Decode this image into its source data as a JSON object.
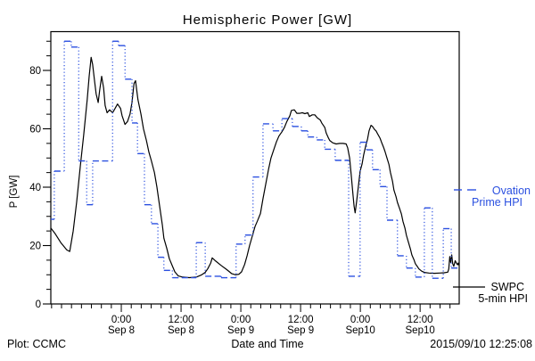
{
  "page": {
    "background": "#ffffff"
  },
  "header": {
    "title": "Hemispheric Power [GW]"
  },
  "footer": {
    "plot_credit": "Plot: CCMC",
    "axis_title": "Date and Time",
    "timestamp": "2015/09/10 12:25:08"
  },
  "legend": {
    "ovation": {
      "line1": "Ovation",
      "line2": "Prime HPI",
      "color": "#2b50e0"
    },
    "swpc": {
      "line1": "SWPC",
      "line2": "5-min HPI",
      "color": "#000000"
    }
  },
  "chart_data": {
    "type": "line",
    "title": "Hemispheric Power [GW]",
    "xlabel": "Date and Time",
    "ylabel": "P [GW]",
    "ylim": [
      0,
      93
    ],
    "xlim_hours": [
      0,
      82
    ],
    "grid": false,
    "legend_position": "right-outside",
    "y_major_ticks": [
      0,
      20,
      40,
      60,
      80
    ],
    "y_minor_step": 5,
    "y_minor_max": 90,
    "x_minor_step_hours": 2,
    "x_major_ticks": [
      {
        "t": 14.15,
        "line1": "0:00",
        "line2": "Sep 8"
      },
      {
        "t": 26.15,
        "line1": "12:00",
        "line2": "Sep 8"
      },
      {
        "t": 38.15,
        "line1": "0:00",
        "line2": "Sep 9"
      },
      {
        "t": 50.15,
        "line1": "12:00",
        "line2": "Sep 9"
      },
      {
        "t": 62.15,
        "line1": "0:00",
        "line2": "Sep10"
      },
      {
        "t": 74.15,
        "line1": "12:00",
        "line2": "Sep10"
      }
    ],
    "series": [
      {
        "name": "SWPC 5-min HPI",
        "style": "solid-polyline",
        "color": "#000000",
        "points": [
          [
            0,
            26
          ],
          [
            0.9,
            24
          ],
          [
            2,
            21
          ],
          [
            3.2,
            18.5
          ],
          [
            3.8,
            18
          ],
          [
            4.5,
            25
          ],
          [
            5.2,
            35
          ],
          [
            5.9,
            47
          ],
          [
            6.6,
            58
          ],
          [
            7.3,
            70
          ],
          [
            7.7,
            78
          ],
          [
            8.1,
            84.5
          ],
          [
            8.4,
            82
          ],
          [
            8.8,
            76
          ],
          [
            9.1,
            72
          ],
          [
            9.5,
            69
          ],
          [
            9.8,
            73
          ],
          [
            10.2,
            78
          ],
          [
            10.6,
            74
          ],
          [
            10.9,
            68
          ],
          [
            11.3,
            65.5
          ],
          [
            11.8,
            66.5
          ],
          [
            12.4,
            65.5
          ],
          [
            12.9,
            67
          ],
          [
            13.4,
            68.5
          ],
          [
            14,
            67
          ],
          [
            14.3,
            64.5
          ],
          [
            14.9,
            61.5
          ],
          [
            15.4,
            62.5
          ],
          [
            15.9,
            65
          ],
          [
            16.3,
            69
          ],
          [
            16.7,
            75.5
          ],
          [
            17,
            76.5
          ],
          [
            17.5,
            70
          ],
          [
            18.1,
            65
          ],
          [
            18.6,
            60
          ],
          [
            19.2,
            56
          ],
          [
            19.7,
            52
          ],
          [
            20.2,
            49
          ],
          [
            20.8,
            45
          ],
          [
            21.3,
            40
          ],
          [
            21.8,
            34
          ],
          [
            22.4,
            27
          ],
          [
            22.7,
            22.5
          ],
          [
            23.3,
            19
          ],
          [
            23.8,
            15.5
          ],
          [
            24.4,
            13
          ],
          [
            24.9,
            11
          ],
          [
            25.6,
            9.6
          ],
          [
            26.5,
            9.2
          ],
          [
            27.8,
            9
          ],
          [
            29.2,
            9.2
          ],
          [
            30.3,
            10
          ],
          [
            31,
            10.8
          ],
          [
            31.5,
            12
          ],
          [
            32.1,
            14
          ],
          [
            32.4,
            15.8
          ],
          [
            33.1,
            14.7
          ],
          [
            34.2,
            13.2
          ],
          [
            35.3,
            11.8
          ],
          [
            36.3,
            10.4
          ],
          [
            37.1,
            10
          ],
          [
            37.8,
            10.2
          ],
          [
            38.3,
            11
          ],
          [
            38.9,
            13.5
          ],
          [
            39.4,
            16.5
          ],
          [
            39.9,
            20
          ],
          [
            40.5,
            23.5
          ],
          [
            41,
            26.5
          ],
          [
            41.5,
            28.5
          ],
          [
            42.1,
            31
          ],
          [
            42.6,
            36
          ],
          [
            43.2,
            41.5
          ],
          [
            43.7,
            46
          ],
          [
            44.2,
            50
          ],
          [
            44.8,
            53
          ],
          [
            45.3,
            55.5
          ],
          [
            45.8,
            57.5
          ],
          [
            46.4,
            59
          ],
          [
            46.9,
            60.5
          ],
          [
            47.4,
            62.5
          ],
          [
            48,
            64.5
          ],
          [
            48.3,
            66.3
          ],
          [
            48.9,
            66.5
          ],
          [
            49.4,
            65.3
          ],
          [
            50,
            65.3
          ],
          [
            50.5,
            65.5
          ],
          [
            51,
            65.2
          ],
          [
            51.6,
            65.5
          ],
          [
            51.9,
            64.2
          ],
          [
            52.5,
            64.8
          ],
          [
            53,
            64.8
          ],
          [
            53.5,
            63.8
          ],
          [
            54.1,
            63
          ],
          [
            54.4,
            62
          ],
          [
            55,
            60.5
          ],
          [
            55.3,
            58.5
          ],
          [
            55.7,
            57
          ],
          [
            56,
            56
          ],
          [
            56.6,
            55.2
          ],
          [
            57.3,
            54.8
          ],
          [
            58,
            55
          ],
          [
            58.7,
            55
          ],
          [
            59.3,
            54.8
          ],
          [
            59.6,
            53.5
          ],
          [
            60,
            50
          ],
          [
            60.3,
            44.5
          ],
          [
            60.7,
            37
          ],
          [
            60.9,
            33.5
          ],
          [
            61.1,
            31.2
          ],
          [
            61.4,
            35
          ],
          [
            61.8,
            41
          ],
          [
            62.1,
            45.5
          ],
          [
            62.5,
            48
          ],
          [
            62.8,
            51
          ],
          [
            63.2,
            54
          ],
          [
            63.6,
            56.5
          ],
          [
            63.9,
            59.3
          ],
          [
            64.3,
            61.2
          ],
          [
            64.6,
            60.8
          ],
          [
            65,
            59.8
          ],
          [
            65.3,
            59.3
          ],
          [
            65.7,
            58
          ],
          [
            66.1,
            56.8
          ],
          [
            66.4,
            55.4
          ],
          [
            66.8,
            53.7
          ],
          [
            67.1,
            52.2
          ],
          [
            67.5,
            50
          ],
          [
            67.9,
            47.8
          ],
          [
            68.2,
            45
          ],
          [
            68.6,
            42
          ],
          [
            68.9,
            39
          ],
          [
            69.3,
            36.8
          ],
          [
            69.6,
            34.8
          ],
          [
            70,
            32.8
          ],
          [
            70.4,
            30.8
          ],
          [
            70.7,
            28.3
          ],
          [
            71.1,
            26
          ],
          [
            71.4,
            23.5
          ],
          [
            71.8,
            21.2
          ],
          [
            72.2,
            18.8
          ],
          [
            72.5,
            16.8
          ],
          [
            72.9,
            15.2
          ],
          [
            73.2,
            13.8
          ],
          [
            73.6,
            12.8
          ],
          [
            73.9,
            12
          ],
          [
            74.5,
            11.2
          ],
          [
            75,
            10.8
          ],
          [
            75.9,
            10.6
          ],
          [
            77,
            10.5
          ],
          [
            78.1,
            10.6
          ],
          [
            79,
            10.7
          ],
          [
            79.7,
            10.9
          ],
          [
            79.9,
            12
          ],
          [
            80.1,
            16.2
          ],
          [
            80.3,
            14.2
          ],
          [
            80.5,
            16.8
          ],
          [
            80.7,
            13.8
          ],
          [
            80.9,
            12.9
          ],
          [
            81.2,
            14.8
          ],
          [
            81.5,
            13.8
          ],
          [
            81.7,
            13.4
          ],
          [
            81.8,
            14
          ],
          [
            82,
            13.2
          ]
        ]
      },
      {
        "name": "Ovation Prime HPI",
        "style": "dashed-steps",
        "color": "#2b50e0",
        "steps": [
          [
            0,
            0.7,
            29
          ],
          [
            0.7,
            2.7,
            45.5
          ],
          [
            2.7,
            4.1,
            90
          ],
          [
            4.1,
            5.6,
            88
          ],
          [
            5.6,
            7.2,
            49
          ],
          [
            7.2,
            8.4,
            34
          ],
          [
            8.4,
            12.4,
            49
          ],
          [
            12.4,
            13.6,
            90
          ],
          [
            13.6,
            14.9,
            88.5
          ],
          [
            14.9,
            16.3,
            77
          ],
          [
            16.3,
            17.4,
            62
          ],
          [
            17.4,
            18.8,
            51.5
          ],
          [
            18.8,
            20.2,
            34
          ],
          [
            20.2,
            21.5,
            27.5
          ],
          [
            21.5,
            22.7,
            16
          ],
          [
            22.7,
            24.4,
            11.5
          ],
          [
            24.4,
            29.2,
            9
          ],
          [
            29.2,
            31,
            21
          ],
          [
            31,
            34.2,
            9.5
          ],
          [
            34.2,
            37.2,
            9
          ],
          [
            37.2,
            39,
            20.5
          ],
          [
            39,
            40.6,
            23.6
          ],
          [
            40.6,
            42.6,
            43.5
          ],
          [
            42.6,
            44.6,
            61.7
          ],
          [
            44.6,
            46.4,
            59.3
          ],
          [
            46.4,
            48.5,
            63.5
          ],
          [
            48.5,
            50.3,
            60.8
          ],
          [
            50.3,
            51.6,
            59.3
          ],
          [
            51.6,
            53.4,
            57.2
          ],
          [
            53.4,
            55,
            56.2
          ],
          [
            55,
            57.1,
            53
          ],
          [
            57.1,
            59.8,
            49.2
          ],
          [
            59.8,
            62.1,
            9.5
          ],
          [
            62.1,
            63.4,
            55.4
          ],
          [
            63.4,
            64.6,
            52.8
          ],
          [
            64.6,
            66.1,
            46
          ],
          [
            66.1,
            67.5,
            40.2
          ],
          [
            67.5,
            69.6,
            28.7
          ],
          [
            69.6,
            71.4,
            16.5
          ],
          [
            71.4,
            73.2,
            12.3
          ],
          [
            73.2,
            75,
            9.2
          ],
          [
            75,
            76.6,
            32.9
          ],
          [
            76.6,
            78.8,
            8.8
          ],
          [
            78.8,
            80.4,
            25.8
          ],
          [
            80.4,
            82,
            12.3
          ]
        ]
      }
    ]
  }
}
